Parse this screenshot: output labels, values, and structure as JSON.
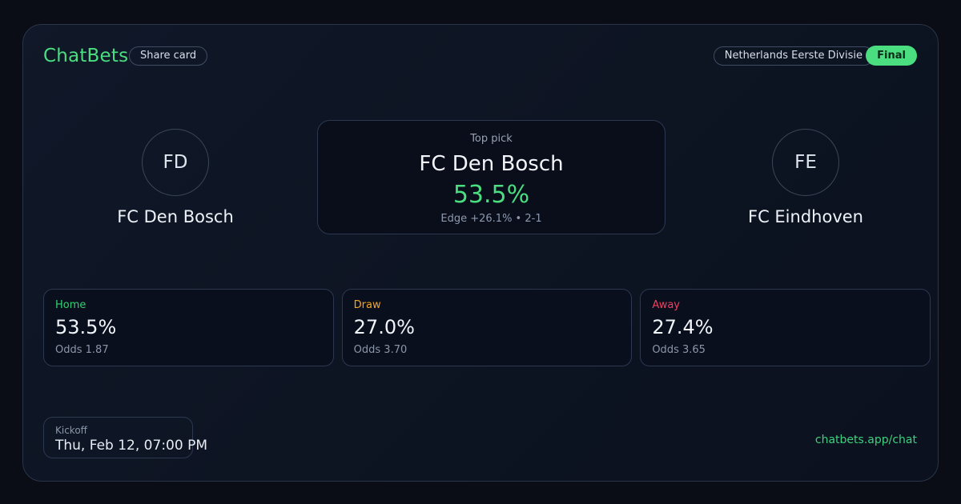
{
  "theme": {
    "bg": "#0a0d16",
    "card_border": "#2a3548",
    "accent_green": "#4ade80",
    "green_home": "#35d073",
    "orange_draw": "#f5a524",
    "red_away": "#f43f5e",
    "link_green": "#3ed17d"
  },
  "header": {
    "brand": "ChatBets",
    "share_button_label": "Share card",
    "league_badge": "Netherlands Eerste Divisie",
    "status_badge": "Final"
  },
  "match": {
    "home_team": {
      "initials": "FD",
      "name": "FC Den Bosch"
    },
    "away_team": {
      "initials": "FE",
      "name": "FC Eindhoven"
    }
  },
  "top_pick": {
    "label": "Top pick",
    "team": "FC Den Bosch",
    "probability": "53.5%",
    "edge_line": "Edge +26.1% • 2-1"
  },
  "markets": [
    {
      "label": "Home",
      "probability": "53.5%",
      "odds": "Odds 1.87"
    },
    {
      "label": "Draw",
      "probability": "27.0%",
      "odds": "Odds 3.70"
    },
    {
      "label": "Away",
      "probability": "27.4%",
      "odds": "Odds 3.65"
    }
  ],
  "kickoff": {
    "label": "Kickoff",
    "value": "Thu, Feb 12, 07:00 PM"
  },
  "footer": {
    "link": "chatbets.app/chat"
  }
}
